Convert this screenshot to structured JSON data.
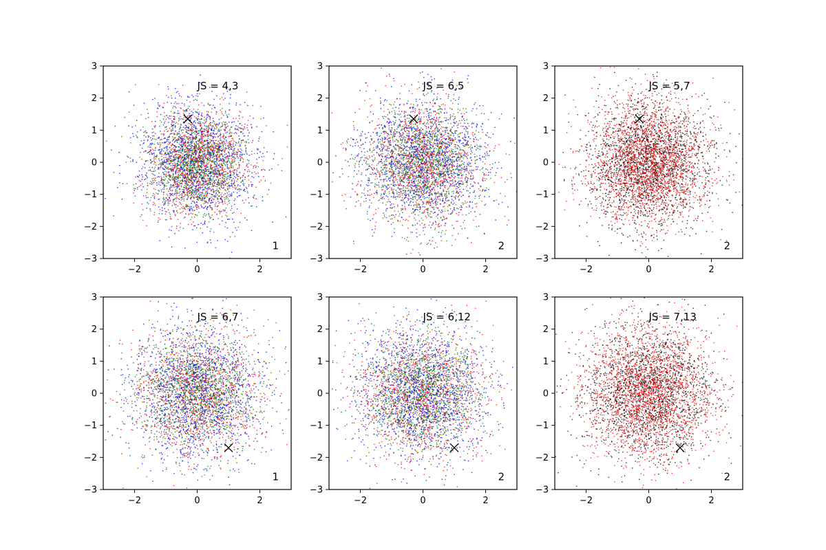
{
  "chart_data": [
    {
      "type": "scatter",
      "panel": 1,
      "xlim": [
        -3,
        3
      ],
      "ylim": [
        -3,
        3
      ],
      "xticks": [
        "−2",
        "0",
        "2"
      ],
      "yticks": [
        "−3",
        "−2",
        "−1",
        "0",
        "1",
        "2",
        "3"
      ],
      "annotation": "JS = 4,3",
      "panel_label": "1",
      "marker": {
        "x": -0.3,
        "y": 1.35
      },
      "series": [
        {
          "color": "#0000ff",
          "count": 1400,
          "spread_x": 0.95,
          "spread_y": 0.95
        },
        {
          "color": "#ff0000",
          "count": 1300,
          "spread_x": 0.85,
          "spread_y": 0.85
        },
        {
          "color": "#008000",
          "count": 1300,
          "spread_x": 0.75,
          "spread_y": 0.75
        }
      ],
      "legend": "none",
      "grid": false
    },
    {
      "type": "scatter",
      "panel": 2,
      "xlim": [
        -3,
        3
      ],
      "ylim": [
        -3,
        3
      ],
      "xticks": [
        "−2",
        "0",
        "2"
      ],
      "yticks": [
        "−3",
        "−2",
        "−1",
        "0",
        "1",
        "2",
        "3"
      ],
      "annotation": "JS = 6,5",
      "panel_label": "2",
      "marker": {
        "x": -0.3,
        "y": 1.35
      },
      "series": [
        {
          "color": "#0000ff",
          "count": 1400,
          "spread_x": 1.0,
          "spread_y": 1.0
        },
        {
          "color": "#ff0000",
          "count": 1300,
          "spread_x": 0.95,
          "spread_y": 0.95
        },
        {
          "color": "#008000",
          "count": 1300,
          "spread_x": 0.9,
          "spread_y": 0.9
        }
      ],
      "legend": "none",
      "grid": false
    },
    {
      "type": "scatter",
      "panel": 3,
      "xlim": [
        -3,
        3
      ],
      "ylim": [
        -3,
        3
      ],
      "xticks": [
        "−2",
        "0",
        "2"
      ],
      "yticks": [
        "−3",
        "−2",
        "−1",
        "0",
        "1",
        "2",
        "3"
      ],
      "annotation": "JS = 5,7",
      "panel_label": "2",
      "marker": {
        "x": -0.3,
        "y": 1.35
      },
      "series": [
        {
          "color": "#000000",
          "count": 1900,
          "spread_x": 1.0,
          "spread_y": 1.0
        },
        {
          "color": "#ff0000",
          "count": 2300,
          "spread_x": 0.95,
          "spread_y": 0.95
        }
      ],
      "legend": "none",
      "grid": false
    },
    {
      "type": "scatter",
      "panel": 4,
      "xlim": [
        -3,
        3
      ],
      "ylim": [
        -3,
        3
      ],
      "xticks": [
        "−2",
        "0",
        "2"
      ],
      "yticks": [
        "−3",
        "−2",
        "−1",
        "0",
        "1",
        "2",
        "3"
      ],
      "annotation": "JS = 6,7",
      "panel_label": "1",
      "marker": {
        "x": 1.0,
        "y": -1.7
      },
      "series": [
        {
          "color": "#0000ff",
          "count": 1400,
          "spread_x": 1.05,
          "spread_y": 1.05
        },
        {
          "color": "#ff0000",
          "count": 1300,
          "spread_x": 1.0,
          "spread_y": 1.0
        },
        {
          "color": "#008000",
          "count": 1300,
          "spread_x": 0.9,
          "spread_y": 0.9
        }
      ],
      "legend": "none",
      "grid": false
    },
    {
      "type": "scatter",
      "panel": 5,
      "xlim": [
        -3,
        3
      ],
      "ylim": [
        -3,
        3
      ],
      "xticks": [
        "−2",
        "0",
        "2"
      ],
      "yticks": [
        "−3",
        "−2",
        "−1",
        "0",
        "1",
        "2",
        "3"
      ],
      "annotation": "JS = 6,12",
      "panel_label": "2",
      "marker": {
        "x": 1.0,
        "y": -1.7
      },
      "series": [
        {
          "color": "#0000ff",
          "count": 1400,
          "spread_x": 1.05,
          "spread_y": 1.05
        },
        {
          "color": "#ff0000",
          "count": 1300,
          "spread_x": 1.0,
          "spread_y": 1.0
        },
        {
          "color": "#008000",
          "count": 1300,
          "spread_x": 0.85,
          "spread_y": 0.85
        }
      ],
      "legend": "none",
      "grid": false
    },
    {
      "type": "scatter",
      "panel": 6,
      "xlim": [
        -3,
        3
      ],
      "ylim": [
        -3,
        3
      ],
      "xticks": [
        "−2",
        "0",
        "2"
      ],
      "yticks": [
        "−3",
        "−2",
        "−1",
        "0",
        "1",
        "2",
        "3"
      ],
      "annotation": "JS = 7,13",
      "panel_label": "2",
      "marker": {
        "x": 1.0,
        "y": -1.7
      },
      "series": [
        {
          "color": "#000000",
          "count": 1800,
          "spread_x": 1.05,
          "spread_y": 1.05
        },
        {
          "color": "#ff0000",
          "count": 2300,
          "spread_x": 1.0,
          "spread_y": 1.0
        }
      ],
      "legend": "none",
      "grid": false
    }
  ]
}
